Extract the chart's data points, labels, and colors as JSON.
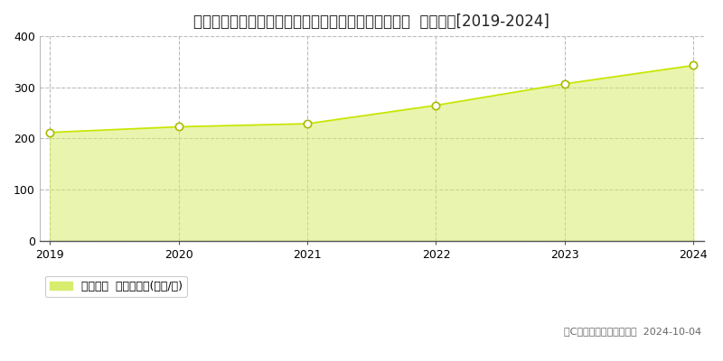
{
  "title": "千葉県流山市おおたかの森西１丁目３番１　基準地価  地価推移[2019-2024]",
  "years": [
    2019,
    2020,
    2021,
    2022,
    2023,
    2024
  ],
  "values": [
    212,
    223,
    229,
    265,
    307,
    343
  ],
  "line_color": "#c8e600",
  "fill_color": "#d8ed6e",
  "fill_alpha": 0.55,
  "marker_color": "#ffffff",
  "marker_edge_color": "#aabb00",
  "marker_size": 6,
  "ylim": [
    0,
    400
  ],
  "yticks": [
    0,
    100,
    200,
    300,
    400
  ],
  "grid_color": "#bbbbbb",
  "grid_style": "--",
  "bg_color": "#ffffff",
  "legend_label": "基準地価  平均坪単価(万円/坪)",
  "copyright_text": "（C）土地価格ドットコム  2024-10-04",
  "title_fontsize": 12,
  "axis_fontsize": 9,
  "legend_fontsize": 9
}
